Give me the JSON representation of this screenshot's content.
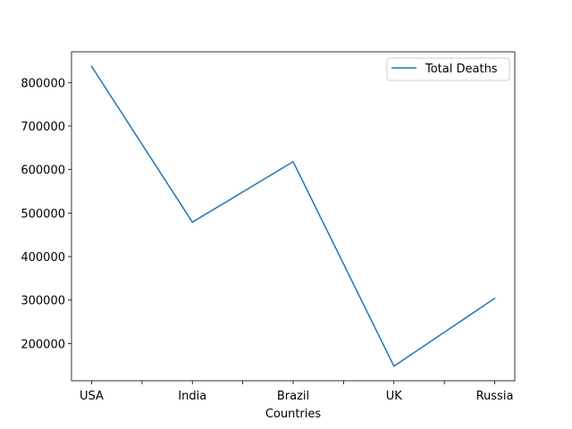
{
  "chart_data": {
    "type": "line",
    "title": "",
    "xlabel": "Countries",
    "ylabel": "",
    "categories": [
      "USA",
      "India",
      "Brazil",
      "UK",
      "Russia"
    ],
    "series": [
      {
        "name": "Total Deaths",
        "values": [
          837000,
          479000,
          618000,
          148000,
          304000
        ],
        "color": "#1f77b4"
      }
    ],
    "y_ticks": [
      200000,
      300000,
      400000,
      500000,
      600000,
      700000,
      800000
    ],
    "ylim": [
      114550,
      870450
    ],
    "grid": false,
    "legend_position": "top-right"
  }
}
